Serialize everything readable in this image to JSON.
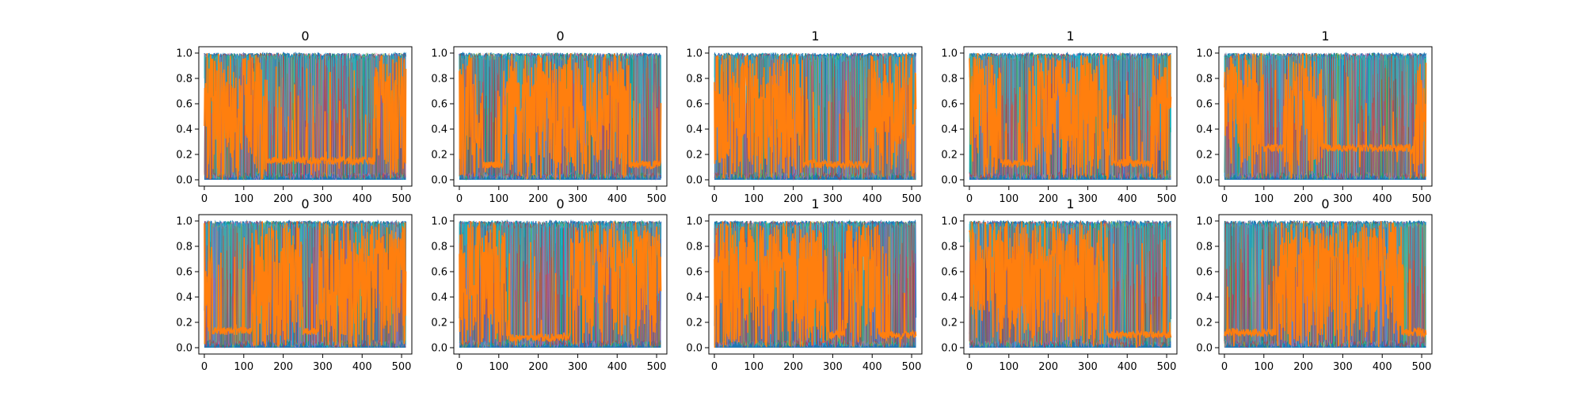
{
  "chart_data": {
    "type": "line",
    "layout_grid": "2x5",
    "xlim": [
      -14,
      526
    ],
    "ylim": [
      -0.05,
      1.05
    ],
    "xticks": [
      0,
      100,
      200,
      300,
      400,
      500
    ],
    "yticks": [
      0.0,
      0.2,
      0.4,
      0.6,
      0.8,
      1.0
    ],
    "xtick_labels": [
      "0",
      "100",
      "200",
      "300",
      "400",
      "500"
    ],
    "ytick_labels": [
      "0.0",
      "0.2",
      "0.4",
      "0.6",
      "0.8",
      "1.0"
    ],
    "colors": {
      "blue": "#1f77b4",
      "orange": "#ff7f0e",
      "cyan": "#17becf",
      "green": "#2ca02c",
      "pink": "#e377c2",
      "olive": "#bcbd22",
      "purple": "#9467bd",
      "red": "#d62728"
    },
    "panels": [
      {
        "title": "0",
        "n_points": 512,
        "low_plateaus": [
          [
            160,
            430
          ]
        ],
        "high_bands": [
          [
            0,
            40
          ],
          [
            90,
            150
          ],
          [
            440,
            470
          ]
        ],
        "plateau_level": 0.15
      },
      {
        "title": "0",
        "n_points": 512,
        "low_plateaus": [
          [
            60,
            110
          ],
          [
            430,
            512
          ]
        ],
        "high_bands": [
          [
            0,
            30
          ],
          [
            160,
            260
          ],
          [
            380,
            420
          ]
        ],
        "plateau_level": 0.12
      },
      {
        "title": "1",
        "n_points": 512,
        "low_plateaus": [
          [
            225,
            390
          ]
        ],
        "high_bands": [
          [
            0,
            200
          ],
          [
            400,
            480
          ]
        ],
        "plateau_level": 0.12
      },
      {
        "title": "1",
        "n_points": 512,
        "low_plateaus": [
          [
            80,
            160
          ],
          [
            360,
            460
          ]
        ],
        "high_bands": [
          [
            0,
            60
          ],
          [
            180,
            340
          ],
          [
            470,
            500
          ]
        ],
        "plateau_level": 0.13
      },
      {
        "title": "1",
        "n_points": 512,
        "low_plateaus": [
          [
            100,
            150
          ],
          [
            250,
            480
          ]
        ],
        "high_bands": [
          [
            0,
            90
          ],
          [
            160,
            240
          ]
        ],
        "plateau_level": 0.25
      },
      {
        "title": "0",
        "n_points": 512,
        "low_plateaus": [
          [
            20,
            120
          ],
          [
            250,
            290
          ]
        ],
        "high_bands": [
          [
            130,
            240
          ],
          [
            300,
            480
          ]
        ],
        "plateau_level": 0.13
      },
      {
        "title": "0",
        "n_points": 512,
        "low_plateaus": [
          [
            120,
            280
          ]
        ],
        "high_bands": [
          [
            0,
            110
          ],
          [
            300,
            512
          ]
        ],
        "plateau_level": 0.08
      },
      {
        "title": "1",
        "n_points": 512,
        "low_plateaus": [
          [
            290,
            330
          ],
          [
            420,
            512
          ]
        ],
        "high_bands": [
          [
            0,
            280
          ],
          [
            340,
            410
          ]
        ],
        "plateau_level": 0.1
      },
      {
        "title": "1",
        "n_points": 512,
        "low_plateaus": [
          [
            350,
            512
          ]
        ],
        "high_bands": [
          [
            0,
            340
          ]
        ],
        "plateau_level": 0.1
      },
      {
        "title": "0",
        "n_points": 512,
        "low_plateaus": [
          [
            0,
            130
          ],
          [
            450,
            512
          ]
        ],
        "high_bands": [
          [
            140,
            440
          ]
        ],
        "plateau_level": 0.12
      }
    ]
  }
}
